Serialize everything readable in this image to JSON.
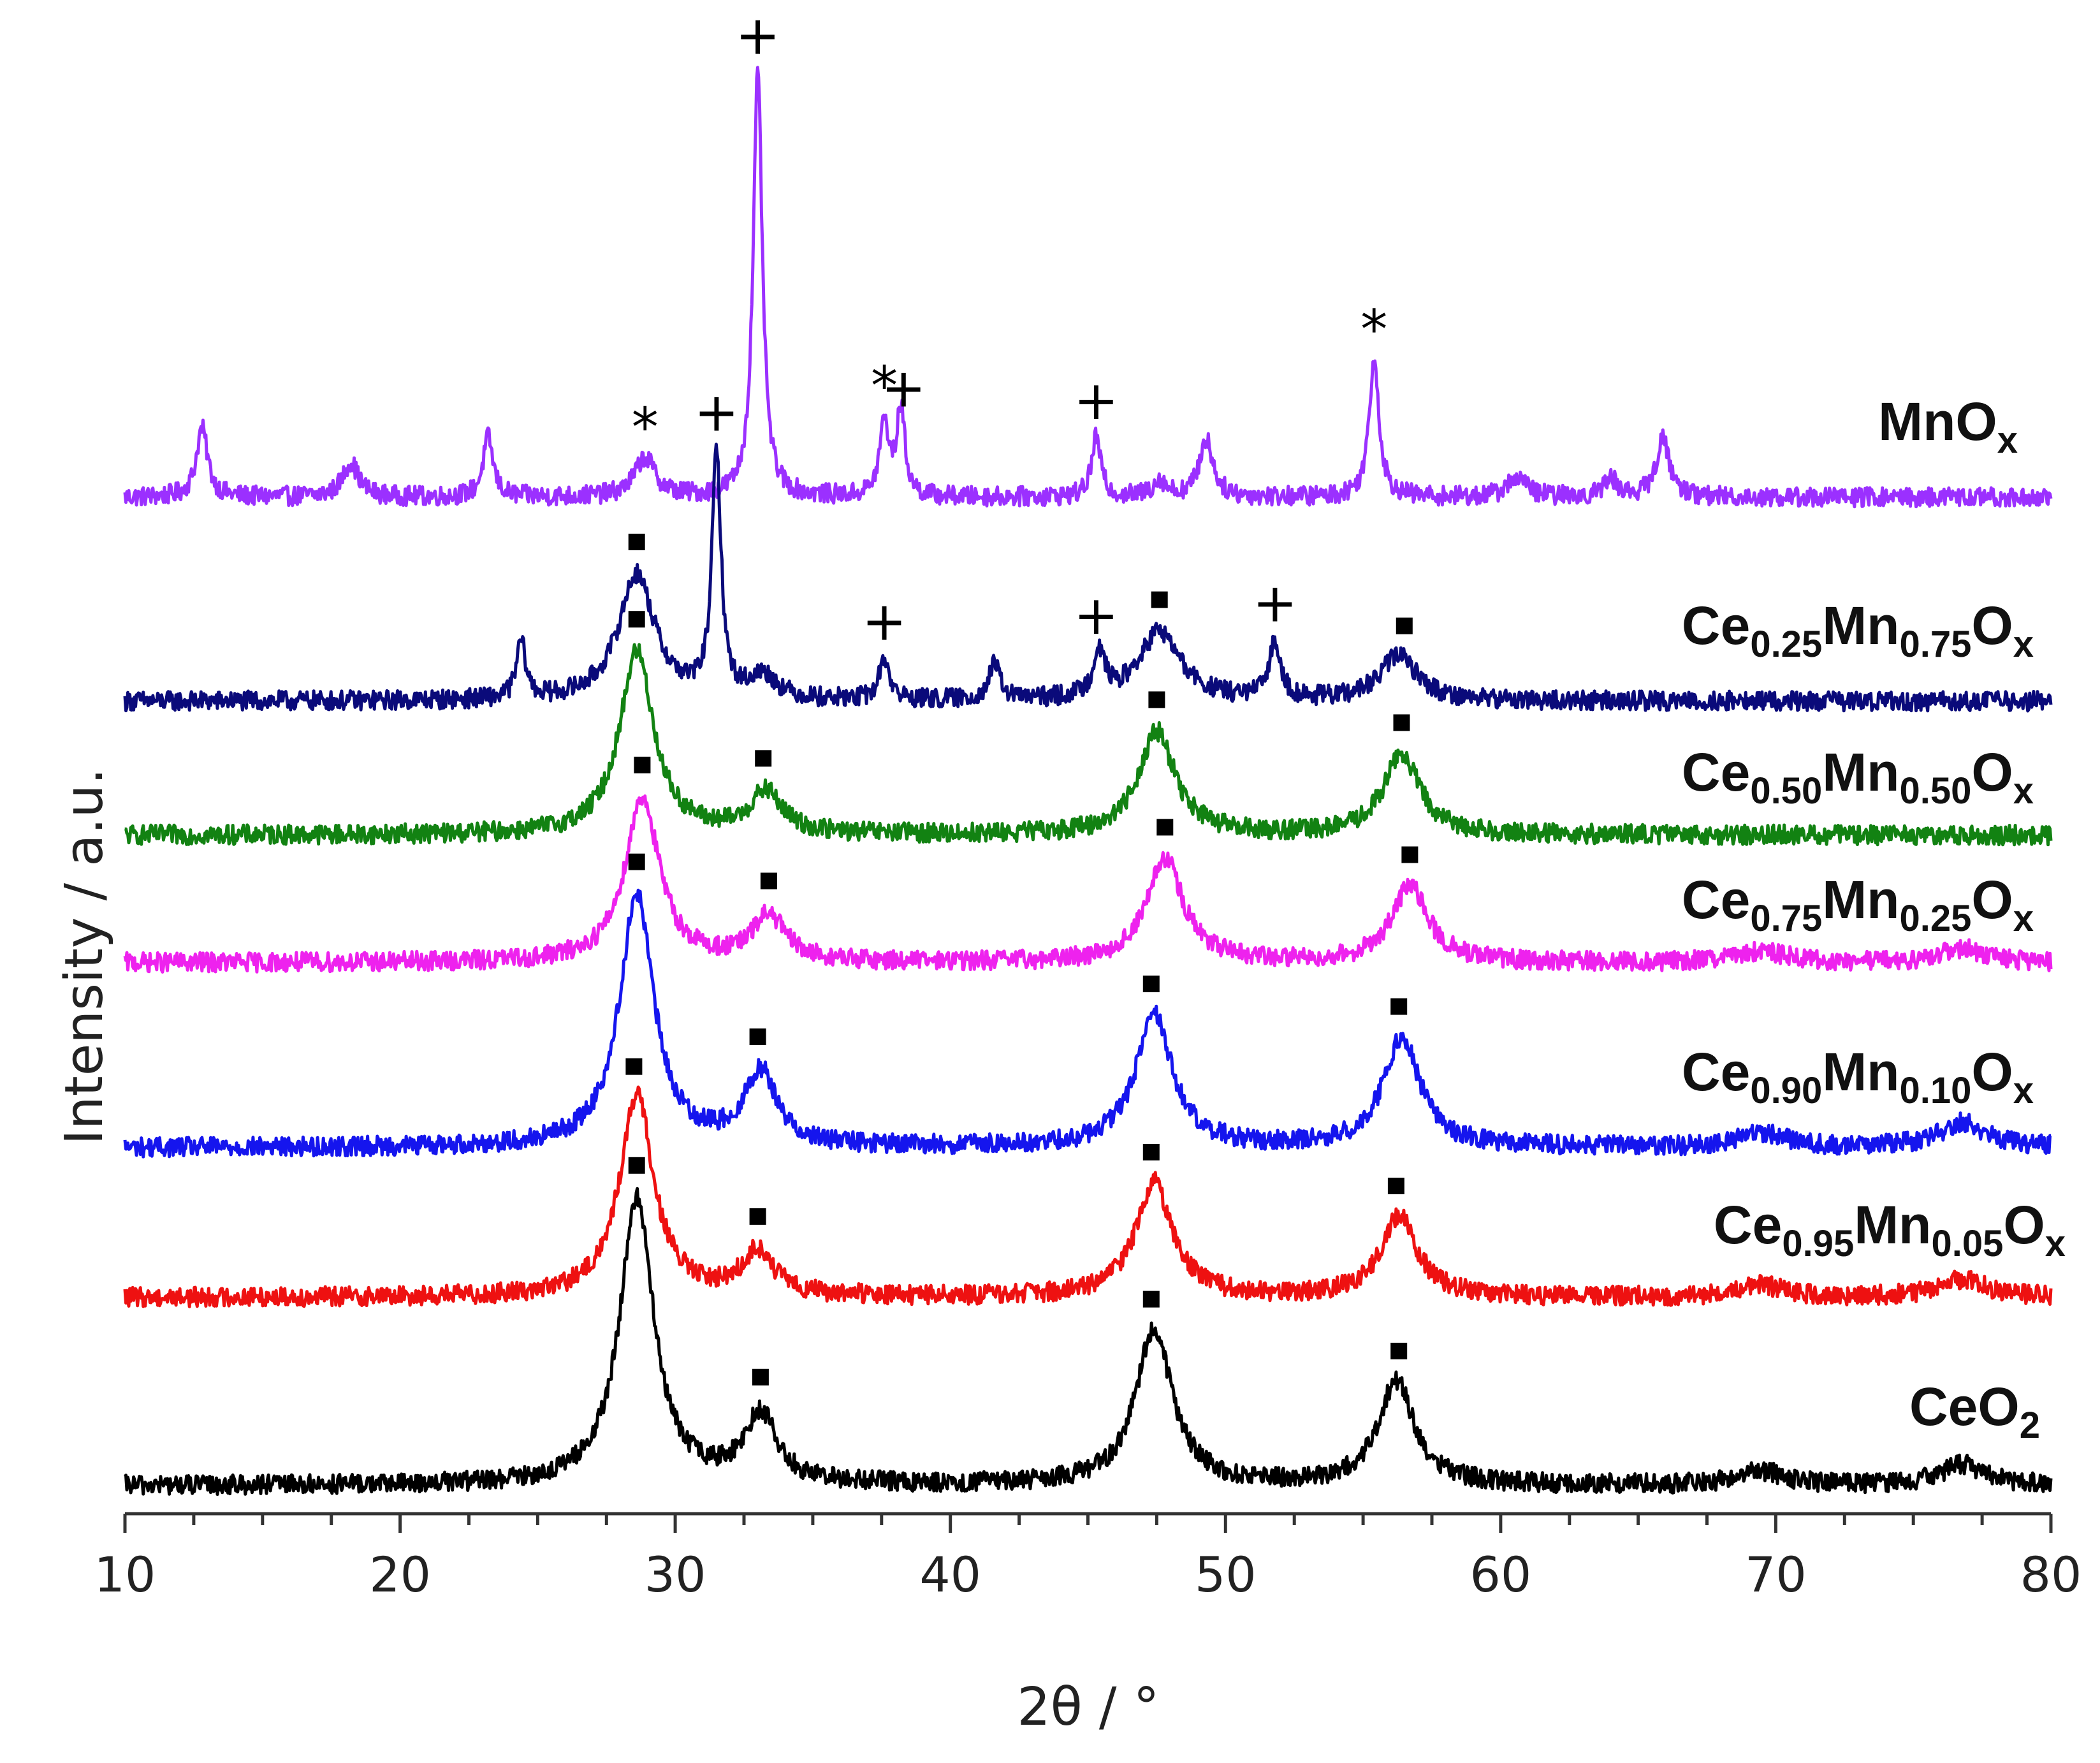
{
  "chart_data": {
    "type": "line",
    "xlabel": "2θ / °",
    "ylabel": "Intensity / a.u.",
    "xlim": [
      10,
      80
    ],
    "xticks": [
      10,
      20,
      30,
      40,
      50,
      60,
      70,
      80
    ],
    "xtick_labels": [
      "10",
      "20",
      "30",
      "40",
      "50",
      "60",
      "70",
      "80"
    ],
    "grid": false,
    "legend": "inline-right",
    "series": [
      {
        "name": "MnOx",
        "label_parts": [
          {
            "t": "MnO",
            "sub": false
          },
          {
            "t": "x",
            "sub": true
          }
        ],
        "color": "#9b30ff",
        "peaks": [
          {
            "pos": 12.8,
            "height": 3.0,
            "width": 0.25
          },
          {
            "pos": 18.2,
            "height": 1.5,
            "width": 0.35
          },
          {
            "pos": 23.2,
            "height": 2.6,
            "width": 0.22
          },
          {
            "pos": 28.9,
            "height": 1.7,
            "width": 0.45
          },
          {
            "pos": 33.0,
            "height": 18.5,
            "width": 0.2
          },
          {
            "pos": 37.6,
            "height": 3.2,
            "width": 0.2
          },
          {
            "pos": 38.2,
            "height": 3.8,
            "width": 0.18
          },
          {
            "pos": 45.3,
            "height": 2.6,
            "width": 0.2
          },
          {
            "pos": 47.6,
            "height": 0.7,
            "width": 0.3
          },
          {
            "pos": 49.3,
            "height": 2.5,
            "width": 0.3
          },
          {
            "pos": 55.4,
            "height": 6.0,
            "width": 0.22
          },
          {
            "pos": 60.6,
            "height": 0.9,
            "width": 0.4
          },
          {
            "pos": 64.0,
            "height": 0.8,
            "width": 0.3
          },
          {
            "pos": 65.9,
            "height": 2.5,
            "width": 0.3
          }
        ],
        "markers": [
          {
            "x": 28.9,
            "symbol": "*"
          },
          {
            "x": 33.0,
            "symbol": "+"
          },
          {
            "x": 37.6,
            "symbol": "*"
          },
          {
            "x": 38.3,
            "symbol": "+"
          },
          {
            "x": 45.3,
            "symbol": "+"
          },
          {
            "x": 55.4,
            "symbol": "*"
          }
        ]
      },
      {
        "name": "Ce0.25Mn0.75Ox",
        "label_parts": [
          {
            "t": "Ce",
            "sub": false
          },
          {
            "t": "0.25",
            "sub": true
          },
          {
            "t": "Mn",
            "sub": false
          },
          {
            "t": "0.75",
            "sub": true
          },
          {
            "t": "O",
            "sub": false
          },
          {
            "t": "x",
            "sub": true
          }
        ],
        "color": "#0a0a7a",
        "peaks": [
          {
            "pos": 24.4,
            "height": 2.5,
            "width": 0.2
          },
          {
            "pos": 28.6,
            "height": 5.5,
            "width": 0.8
          },
          {
            "pos": 31.5,
            "height": 10.5,
            "width": 0.2
          },
          {
            "pos": 33.2,
            "height": 1.0,
            "width": 0.6
          },
          {
            "pos": 37.6,
            "height": 1.8,
            "width": 0.22
          },
          {
            "pos": 41.6,
            "height": 1.5,
            "width": 0.25
          },
          {
            "pos": 45.4,
            "height": 2.0,
            "width": 0.25
          },
          {
            "pos": 47.6,
            "height": 3.0,
            "width": 0.9
          },
          {
            "pos": 51.8,
            "height": 2.5,
            "width": 0.25
          },
          {
            "pos": 56.3,
            "height": 2.0,
            "width": 0.8
          }
        ],
        "markers": [
          {
            "x": 28.6,
            "symbol": "■"
          },
          {
            "x": 31.5,
            "symbol": "+"
          },
          {
            "x": 37.6,
            "symbol": "+"
          },
          {
            "x": 45.3,
            "symbol": "+"
          },
          {
            "x": 47.6,
            "symbol": "■"
          },
          {
            "x": 51.8,
            "symbol": "+"
          },
          {
            "x": 56.5,
            "symbol": "■"
          }
        ]
      },
      {
        "name": "Ce0.50Mn0.50Ox",
        "label_parts": [
          {
            "t": "Ce",
            "sub": false
          },
          {
            "t": "0.50",
            "sub": true
          },
          {
            "t": "Mn",
            "sub": false
          },
          {
            "t": "0.50",
            "sub": true
          },
          {
            "t": "O",
            "sub": false
          },
          {
            "t": "x",
            "sub": true
          }
        ],
        "color": "#128212",
        "peaks": [
          {
            "pos": 28.6,
            "height": 8.0,
            "width": 0.75
          },
          {
            "pos": 33.3,
            "height": 1.8,
            "width": 0.7
          },
          {
            "pos": 47.5,
            "height": 4.5,
            "width": 0.8
          },
          {
            "pos": 56.4,
            "height": 3.5,
            "width": 0.8
          }
        ],
        "markers": [
          {
            "x": 28.6,
            "symbol": "■"
          },
          {
            "x": 33.2,
            "symbol": "■"
          },
          {
            "x": 47.5,
            "symbol": "■"
          },
          {
            "x": 56.4,
            "symbol": "■"
          }
        ]
      },
      {
        "name": "Ce0.75Mn0.25Ox",
        "label_parts": [
          {
            "t": "Ce",
            "sub": false
          },
          {
            "t": "0.75",
            "sub": true
          },
          {
            "t": "Mn",
            "sub": false
          },
          {
            "t": "0.25",
            "sub": true
          },
          {
            "t": "O",
            "sub": false
          },
          {
            "t": "x",
            "sub": true
          }
        ],
        "color": "#ee22ee",
        "peaks": [
          {
            "pos": 28.8,
            "height": 7.2,
            "width": 0.75
          },
          {
            "pos": 33.4,
            "height": 2.0,
            "width": 0.7
          },
          {
            "pos": 47.8,
            "height": 4.5,
            "width": 0.8
          },
          {
            "pos": 56.7,
            "height": 3.3,
            "width": 0.8
          },
          {
            "pos": 69.5,
            "height": 0.5,
            "width": 1.0
          },
          {
            "pos": 76.8,
            "height": 0.6,
            "width": 1.0
          }
        ],
        "markers": [
          {
            "x": 28.8,
            "symbol": "■"
          },
          {
            "x": 33.4,
            "symbol": "■"
          },
          {
            "x": 47.8,
            "symbol": "■"
          },
          {
            "x": 56.7,
            "symbol": "■"
          }
        ]
      },
      {
        "name": "Ce0.90Mn0.10Ox",
        "label_parts": [
          {
            "t": "Ce",
            "sub": false
          },
          {
            "t": "0.90",
            "sub": true
          },
          {
            "t": "Mn",
            "sub": false
          },
          {
            "t": "0.10",
            "sub": true
          },
          {
            "t": "O",
            "sub": false
          },
          {
            "t": "x",
            "sub": true
          }
        ],
        "color": "#1515ee",
        "peaks": [
          {
            "pos": 28.6,
            "height": 11.0,
            "width": 0.75
          },
          {
            "pos": 33.1,
            "height": 3.2,
            "width": 0.7
          },
          {
            "pos": 47.4,
            "height": 5.8,
            "width": 0.8
          },
          {
            "pos": 56.4,
            "height": 4.8,
            "width": 0.8
          },
          {
            "pos": 69.5,
            "height": 0.6,
            "width": 1.0
          },
          {
            "pos": 76.8,
            "height": 1.1,
            "width": 1.0
          }
        ],
        "markers": [
          {
            "x": 28.6,
            "symbol": "■"
          },
          {
            "x": 33.0,
            "symbol": "■"
          },
          {
            "x": 47.3,
            "symbol": "■"
          },
          {
            "x": 56.3,
            "symbol": "■"
          }
        ]
      },
      {
        "name": "Ce0.95Mn0.05Ox",
        "label_parts": [
          {
            "t": "Ce",
            "sub": false
          },
          {
            "t": "0.95",
            "sub": true
          },
          {
            "t": "Mn",
            "sub": false
          },
          {
            "t": "0.05",
            "sub": true
          },
          {
            "t": "O",
            "sub": false
          },
          {
            "t": "x",
            "sub": true
          }
        ],
        "color": "#ee1111",
        "peaks": [
          {
            "pos": 28.6,
            "height": 8.8,
            "width": 0.75
          },
          {
            "pos": 33.0,
            "height": 1.9,
            "width": 0.7
          },
          {
            "pos": 47.4,
            "height": 5.0,
            "width": 0.8
          },
          {
            "pos": 56.3,
            "height": 3.5,
            "width": 0.8
          },
          {
            "pos": 69.5,
            "height": 0.5,
            "width": 1.0
          },
          {
            "pos": 76.8,
            "height": 0.8,
            "width": 1.0
          }
        ],
        "markers": [
          {
            "x": 28.5,
            "symbol": "■"
          },
          {
            "x": 33.0,
            "symbol": "■"
          },
          {
            "x": 47.3,
            "symbol": "■"
          },
          {
            "x": 56.2,
            "symbol": "■"
          }
        ]
      },
      {
        "name": "CeO2",
        "label_parts": [
          {
            "t": "CeO",
            "sub": false
          },
          {
            "t": "2",
            "sub": true
          }
        ],
        "color": "#000000",
        "peaks": [
          {
            "pos": 28.6,
            "height": 12.5,
            "width": 0.75
          },
          {
            "pos": 33.1,
            "height": 3.0,
            "width": 0.7
          },
          {
            "pos": 47.4,
            "height": 6.8,
            "width": 0.8
          },
          {
            "pos": 56.2,
            "height": 4.5,
            "width": 0.8
          },
          {
            "pos": 69.5,
            "height": 0.6,
            "width": 1.0
          },
          {
            "pos": 76.8,
            "height": 0.9,
            "width": 1.0
          }
        ],
        "markers": [
          {
            "x": 28.6,
            "symbol": "■"
          },
          {
            "x": 33.1,
            "symbol": "■"
          },
          {
            "x": 47.3,
            "symbol": "■"
          },
          {
            "x": 56.3,
            "symbol": "■"
          }
        ]
      }
    ]
  }
}
